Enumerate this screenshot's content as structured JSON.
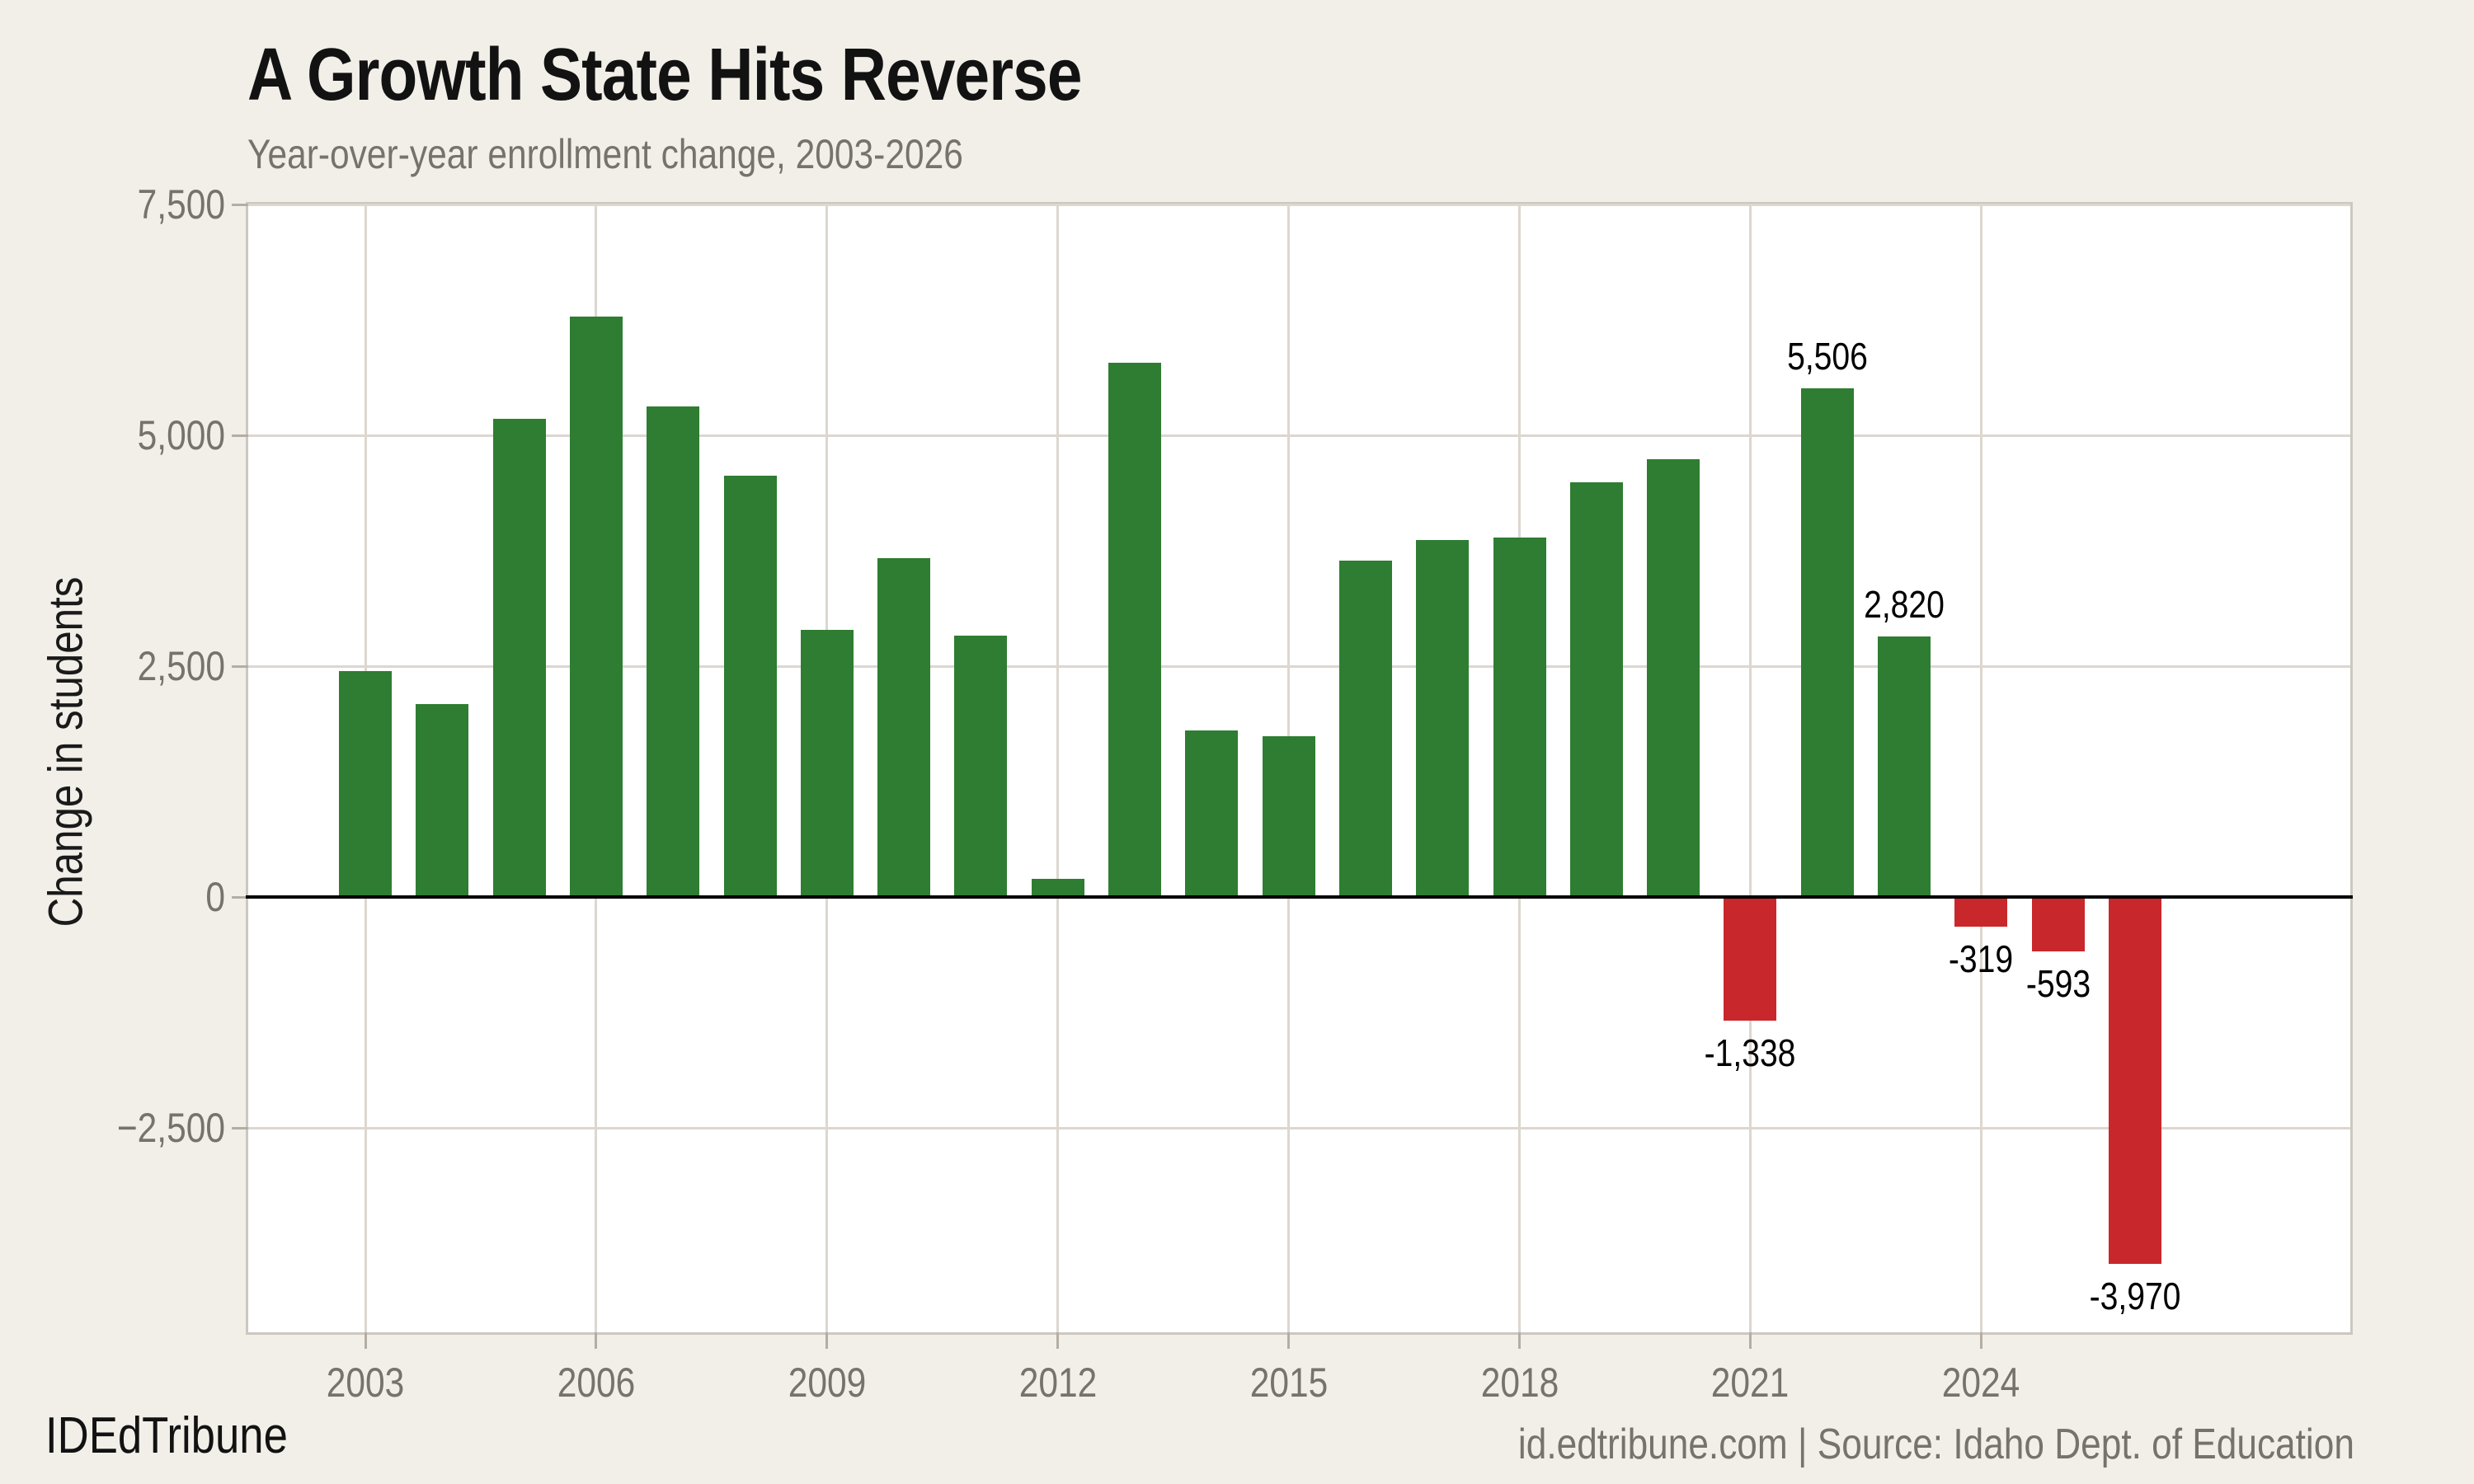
{
  "page": {
    "background": "#f2efe9"
  },
  "footer": {
    "brand": "IDEdTribune",
    "source": "id.edtribune.com | Source: Idaho Dept. of Education"
  },
  "chart_data": {
    "type": "bar",
    "title": "A Growth State Hits Reverse",
    "subtitle": "Year-over-year enrollment change, 2003-2026",
    "xlabel": "",
    "ylabel": "Change in students",
    "categories": [
      2003,
      2004,
      2005,
      2006,
      2007,
      2008,
      2009,
      2010,
      2011,
      2012,
      2013,
      2014,
      2015,
      2016,
      2017,
      2018,
      2019,
      2020,
      2021,
      2022,
      2023,
      2024,
      2025,
      2026
    ],
    "values": [
      2450,
      2090,
      5180,
      6290,
      5310,
      4560,
      2890,
      3670,
      2830,
      200,
      5790,
      1800,
      1740,
      3640,
      3870,
      3890,
      4490,
      4740,
      -1338,
      5506,
      2820,
      -319,
      -593,
      -3970
    ],
    "value_labels": {
      "2021": "-1,338",
      "2022": "5,506",
      "2023": "2,820",
      "2024": "-319",
      "2025": "-593",
      "2026": "-3,970"
    },
    "yticks": [
      {
        "v": 7500,
        "label": "7,500"
      },
      {
        "v": 5000,
        "label": "5,000"
      },
      {
        "v": 2500,
        "label": "2,500"
      },
      {
        "v": 0,
        "label": "0"
      },
      {
        "v": -2500,
        "label": "−2,500"
      }
    ],
    "xticks": [
      2003,
      2006,
      2009,
      2012,
      2015,
      2018,
      2021,
      2024
    ],
    "ylim": [
      -4714,
      7500
    ],
    "grid": true,
    "legend": false,
    "colors": {
      "positive": "#2e7d32",
      "negative": "#c8282b",
      "grid": "#dcd7cf",
      "zero_axis": "#000000",
      "tick": "#b3aea5",
      "muted_text": "#76736d",
      "plot_bg": "#ffffff"
    }
  }
}
